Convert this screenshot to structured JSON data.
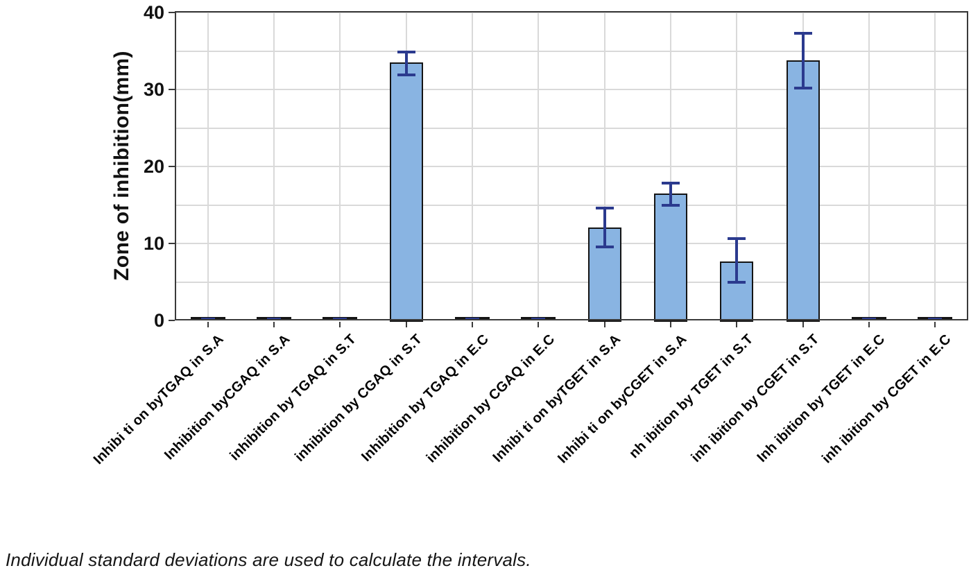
{
  "chart_data": {
    "type": "bar",
    "title": "",
    "xlabel": "",
    "ylabel": "Zone of inhibition(mm)",
    "ylim": [
      0,
      40
    ],
    "yticks": [
      0,
      10,
      20,
      30,
      40
    ],
    "grid": {
      "horizontal_every": 5,
      "vertical_at_categories": true
    },
    "legend": "none",
    "categories": [
      "Inhibi ti on byTGAQ in S.A",
      "Inhibition byCGAQ in S.A",
      "inhibition by TGAQ in S.T",
      "inhibition by CGAQ in S.T",
      "Inhibition by TGAQ in E.C",
      "inhibition by CGAQ in E.C",
      "Inhibi ti on byTGET in S.A",
      "Inhibi ti on byCGET in S.A",
      "nh ibition by TGET in S.T",
      "inh ibition by CGET in S.T",
      "Inh ibition by TGET in E.C",
      "inh ibition by CGET in E.C"
    ],
    "values": [
      0,
      0,
      0,
      33.5,
      0,
      0,
      12.1,
      16.5,
      7.7,
      33.8,
      0,
      0
    ],
    "error_intervals": [
      [
        0,
        0
      ],
      [
        0,
        0
      ],
      [
        0,
        0
      ],
      [
        31.8,
        35.0
      ],
      [
        0,
        0
      ],
      [
        0,
        0
      ],
      [
        9.5,
        14.7
      ],
      [
        14.9,
        17.9
      ],
      [
        4.9,
        10.7
      ],
      [
        30.1,
        37.4
      ],
      [
        0,
        0
      ],
      [
        0,
        0
      ]
    ],
    "footnote": "Individual standard deviations are used to calculate the intervals.",
    "colors": {
      "bar_fill": "#89b4e2",
      "bar_border": "#141414",
      "error_bar": "#2b3a8e",
      "gridline": "#d9d9d9",
      "frame": "#3a3a3a"
    }
  }
}
